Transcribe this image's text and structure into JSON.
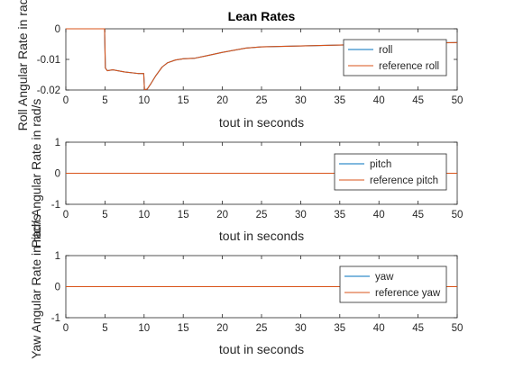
{
  "chart_data": [
    {
      "type": "line",
      "title": "Lean Rates",
      "xlabel": "tout in seconds",
      "ylabel": "Roll Angular Rate in rad/s",
      "xlim": [
        0,
        50
      ],
      "ylim": [
        -0.02,
        0
      ],
      "xticks": [
        "0",
        "5",
        "10",
        "15",
        "20",
        "25",
        "30",
        "35",
        "40",
        "45",
        "50"
      ],
      "yticks": [
        "0",
        "-0.01",
        "-0.02"
      ],
      "grid": false,
      "legend": "right",
      "series": [
        {
          "name": "roll",
          "color": "#0072BD",
          "x": [
            0,
            4.95,
            5.05,
            5.3,
            6,
            7.5,
            9.2,
            9.95,
            10.05,
            10.4,
            10.9,
            11.5,
            12.3,
            13,
            14,
            15,
            16.5,
            18,
            20,
            23,
            25,
            30,
            35,
            40,
            45,
            50
          ],
          "y": [
            0,
            0,
            -0.0128,
            -0.0137,
            -0.0134,
            -0.0141,
            -0.0146,
            -0.0146,
            -0.0199,
            -0.0197,
            -0.0178,
            -0.0153,
            -0.0125,
            -0.0111,
            -0.0102,
            -0.0098,
            -0.0096,
            -0.0088,
            -0.0077,
            -0.0063,
            -0.0059,
            -0.0056,
            -0.0053,
            -0.005,
            -0.0047,
            -0.0045
          ]
        },
        {
          "name": "reference roll",
          "color": "#D95319",
          "x": [
            0,
            4.95,
            5.05,
            5.3,
            6,
            7.5,
            9.2,
            9.95,
            10.05,
            10.4,
            10.9,
            11.5,
            12.3,
            13,
            14,
            15,
            16.5,
            18,
            20,
            23,
            25,
            30,
            35,
            40,
            45,
            50
          ],
          "y": [
            0,
            0,
            -0.0128,
            -0.0137,
            -0.0134,
            -0.0141,
            -0.0146,
            -0.0146,
            -0.0199,
            -0.0197,
            -0.0178,
            -0.0153,
            -0.0125,
            -0.0111,
            -0.0102,
            -0.0098,
            -0.0096,
            -0.0088,
            -0.0077,
            -0.0063,
            -0.0059,
            -0.0056,
            -0.0053,
            -0.005,
            -0.0047,
            -0.0045
          ]
        }
      ]
    },
    {
      "type": "line",
      "title": "",
      "xlabel": "tout in seconds",
      "ylabel": "Pitch Angular Rate in rad/s",
      "xlim": [
        0,
        50
      ],
      "ylim": [
        -1,
        1
      ],
      "xticks": [
        "0",
        "5",
        "10",
        "15",
        "20",
        "25",
        "30",
        "35",
        "40",
        "45",
        "50"
      ],
      "yticks": [
        "1",
        "0",
        "-1"
      ],
      "grid": false,
      "legend": "right",
      "series": [
        {
          "name": "pitch",
          "color": "#0072BD",
          "x": [
            0,
            50
          ],
          "y": [
            0,
            0
          ]
        },
        {
          "name": "reference pitch",
          "color": "#D95319",
          "x": [
            0,
            50
          ],
          "y": [
            0,
            0
          ]
        }
      ]
    },
    {
      "type": "line",
      "title": "",
      "xlabel": "tout in seconds",
      "ylabel": "Yaw Angular Rate in rad/s",
      "xlim": [
        0,
        50
      ],
      "ylim": [
        -1,
        1
      ],
      "xticks": [
        "0",
        "5",
        "10",
        "15",
        "20",
        "25",
        "30",
        "35",
        "40",
        "45",
        "50"
      ],
      "yticks": [
        "1",
        "0",
        "-1"
      ],
      "grid": false,
      "legend": "right",
      "series": [
        {
          "name": "yaw",
          "color": "#0072BD",
          "x": [
            0,
            50
          ],
          "y": [
            0,
            0
          ]
        },
        {
          "name": "reference yaw",
          "color": "#D95319",
          "x": [
            0,
            50
          ],
          "y": [
            0,
            0
          ]
        }
      ]
    }
  ]
}
